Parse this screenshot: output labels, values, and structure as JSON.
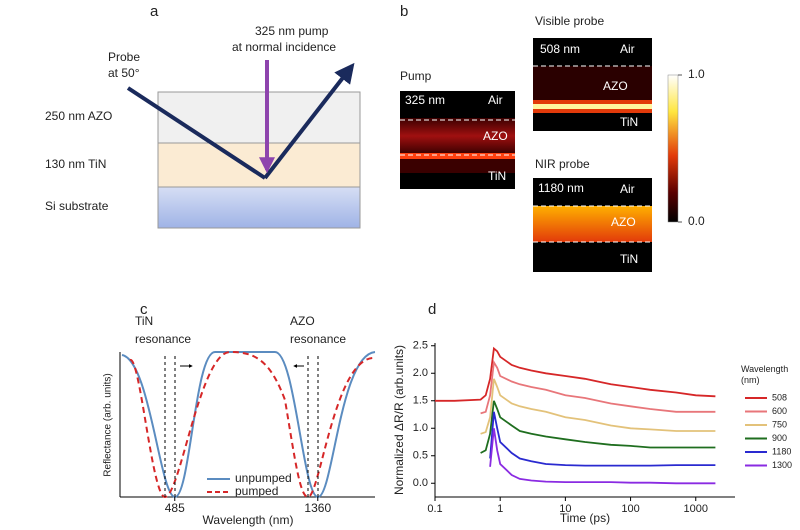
{
  "panels": {
    "a": {
      "label": "a",
      "probe": [
        "Probe",
        "at 50°"
      ],
      "pump": [
        "325 nm pump",
        "at normal incidence"
      ],
      "layers": [
        "250 nm AZO",
        "130 nm TiN",
        "Si substrate"
      ]
    },
    "b": {
      "label": "b",
      "pump": {
        "title": "Pump",
        "wavelength": "325 nm",
        "air": "Air",
        "azo": "AZO",
        "tin": "TiN"
      },
      "visible": {
        "title": "Visible probe",
        "wavelength": "508 nm",
        "air": "Air",
        "azo": "AZO",
        "tin": "TiN"
      },
      "nir": {
        "title": "NIR probe",
        "wavelength": "1180 nm",
        "air": "Air",
        "azo": "AZO",
        "tin": "TiN"
      },
      "colorbar": {
        "lim": [
          0,
          1
        ],
        "ticks": [
          {
            "value": 0,
            "label": "0.0"
          },
          {
            "value": 1,
            "label": "1.0"
          }
        ]
      }
    },
    "c": {
      "label": "c",
      "tin_resonance": [
        "TiN",
        "resonance"
      ],
      "azo_resonance": [
        "AZO",
        "resonance"
      ],
      "ylabel": "Reflectance (arb. units)",
      "xlabel": "Wavelength (nm)",
      "xlim": [
        150,
        1710
      ],
      "xticks": [
        485,
        1360
      ],
      "legend": [
        "unpumped",
        "pumped"
      ]
    }
  },
  "chart_data": {
    "type": "line",
    "label": "d",
    "xlabel": "Time (ps)",
    "ylabel": "Normalized ΔR/R (arb.units)",
    "xscale": "log",
    "xlim": [
      0.1,
      4000
    ],
    "xticks": [
      0.1,
      1,
      10,
      100,
      1000
    ],
    "ylim": [
      -0.25,
      2.55
    ],
    "yticks": [
      {
        "value": 0,
        "label": "0.0"
      },
      0.5,
      {
        "value": 1,
        "label": "1.0"
      },
      1.5,
      {
        "value": 2,
        "label": "2.0"
      },
      2.5
    ],
    "legend_title": "Wavelength (nm)",
    "x": [
      0.1,
      0.2,
      0.5,
      0.6,
      0.7,
      0.8,
      0.9,
      1,
      1.5,
      2,
      3,
      5,
      10,
      20,
      50,
      100,
      200,
      500,
      1000,
      2000
    ],
    "series": [
      {
        "name": "508",
        "color": "#d62728",
        "values": [
          1.5,
          1.5,
          1.52,
          1.6,
          1.9,
          2.45,
          2.4,
          2.3,
          2.15,
          2.1,
          2.05,
          2.0,
          1.95,
          1.9,
          1.8,
          1.75,
          1.7,
          1.65,
          1.6,
          1.58
        ]
      },
      {
        "name": "600",
        "color": "#e8767a",
        "values": [
          null,
          null,
          1.27,
          1.3,
          1.6,
          2.2,
          2.1,
          1.95,
          1.85,
          1.8,
          1.75,
          1.7,
          1.6,
          1.55,
          1.45,
          1.4,
          1.35,
          1.3,
          1.3,
          1.3
        ]
      },
      {
        "name": "750",
        "color": "#e3c27a",
        "values": [
          null,
          null,
          0.9,
          0.93,
          1.2,
          1.9,
          1.75,
          1.6,
          1.45,
          1.4,
          1.35,
          1.3,
          1.2,
          1.15,
          1.05,
          1.0,
          0.98,
          0.95,
          0.95,
          0.95
        ]
      },
      {
        "name": "900",
        "color": "#1f6e1f",
        "values": [
          null,
          null,
          0.55,
          0.6,
          0.9,
          1.5,
          1.35,
          1.2,
          1.05,
          0.95,
          0.9,
          0.85,
          0.8,
          0.75,
          0.7,
          0.68,
          0.65,
          0.65,
          0.65,
          0.65
        ]
      },
      {
        "name": "1180",
        "color": "#2a2ad0",
        "values": [
          null,
          null,
          null,
          null,
          0.45,
          1.3,
          1.0,
          0.75,
          0.55,
          0.45,
          0.4,
          0.35,
          0.33,
          0.32,
          0.32,
          0.32,
          0.32,
          0.33,
          0.33,
          0.33
        ]
      },
      {
        "name": "1300",
        "color": "#8a2be2",
        "values": [
          null,
          null,
          null,
          null,
          0.3,
          1.0,
          0.6,
          0.35,
          0.15,
          0.08,
          0.05,
          0.03,
          0.02,
          0.02,
          0.02,
          0.01,
          0.01,
          0.0,
          0.0,
          0.0
        ]
      }
    ]
  }
}
